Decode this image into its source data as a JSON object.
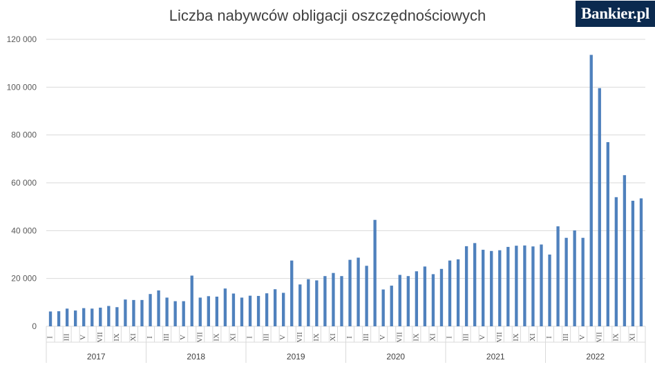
{
  "header": {
    "title": "Liczba nabywców obligacji oszczędnościowych",
    "logo_text": "Bankier.pl"
  },
  "colors": {
    "bar": "#4f81bd",
    "grid": "#d9d9d9",
    "logo_bg": "#0b2a4f"
  },
  "chart_data": {
    "type": "bar",
    "title": "Liczba nabywców obligacji oszczędnościowych",
    "xlabel": "",
    "ylabel": "",
    "ylim": [
      0,
      120000
    ],
    "y_ticks": [
      0,
      20000,
      40000,
      60000,
      80000,
      100000,
      120000
    ],
    "y_tick_labels": [
      "0",
      "20 000",
      "40 000",
      "60 000",
      "80 000",
      "100 000",
      "120 000"
    ],
    "grid": true,
    "month_labels": [
      "I",
      "",
      "III",
      "",
      "V",
      "",
      "VII",
      "",
      "IX",
      "",
      "XI",
      ""
    ],
    "years": [
      {
        "year": "2017",
        "values": [
          6200,
          6300,
          7400,
          6600,
          7600,
          7400,
          7800,
          8500,
          8000,
          11200,
          11000,
          11000
        ]
      },
      {
        "year": "2018",
        "values": [
          13500,
          15000,
          12000,
          10500,
          10500,
          21200,
          12000,
          12600,
          12400,
          15800,
          13700,
          12000
        ]
      },
      {
        "year": "2019",
        "values": [
          12800,
          12700,
          13800,
          15500,
          14000,
          27500,
          17500,
          19700,
          19200,
          21000,
          22300,
          21000
        ]
      },
      {
        "year": "2020",
        "values": [
          27800,
          28700,
          25300,
          44500,
          15400,
          17000,
          21500,
          21000,
          23000,
          25000,
          21800,
          24000
        ]
      },
      {
        "year": "2021",
        "values": [
          27500,
          28000,
          33500,
          34800,
          32000,
          31500,
          31800,
          33200,
          33700,
          33800,
          33400,
          34200
        ]
      },
      {
        "year": "2022",
        "values": [
          30000,
          41800,
          37000,
          40100,
          37000,
          113500,
          99600,
          77000,
          54000,
          63200,
          52500,
          53500
        ]
      }
    ]
  }
}
